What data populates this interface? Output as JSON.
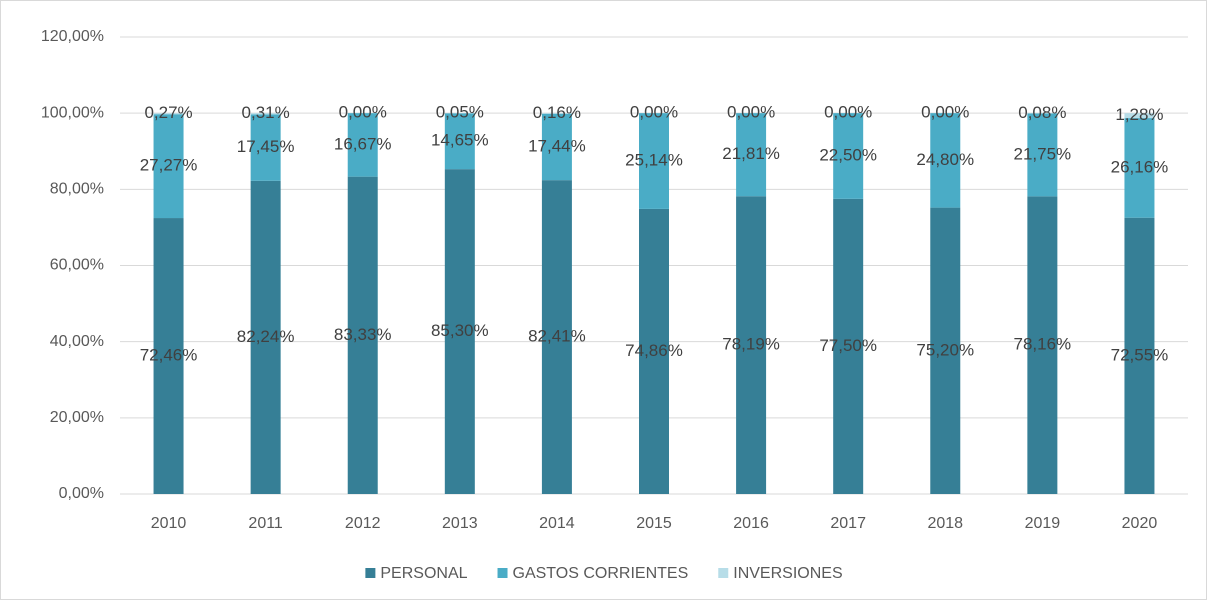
{
  "chart_data": {
    "type": "stacked_bar",
    "categories": [
      "2010",
      "2011",
      "2012",
      "2013",
      "2014",
      "2015",
      "2016",
      "2017",
      "2018",
      "2019",
      "2020"
    ],
    "series": [
      {
        "name": "PERSONAL",
        "color": "#367f96",
        "values": [
          72.46,
          82.24,
          83.33,
          85.3,
          82.41,
          74.86,
          78.19,
          77.5,
          75.2,
          78.16,
          72.55
        ],
        "value_labels": [
          "72,46%",
          "82,24%",
          "83,33%",
          "85,30%",
          "82,41%",
          "74,86%",
          "78,19%",
          "77,50%",
          "75,20%",
          "78,16%",
          "72,55%"
        ]
      },
      {
        "name": "GASTOS CORRIENTES",
        "color": "#4aacc6",
        "values": [
          27.27,
          17.45,
          16.67,
          14.65,
          17.44,
          25.14,
          21.81,
          22.5,
          24.8,
          21.75,
          26.16
        ],
        "value_labels": [
          "27,27%",
          "17,45%",
          "16,67%",
          "14,65%",
          "17,44%",
          "25,14%",
          "21,81%",
          "22,50%",
          "24,80%",
          "21,75%",
          "26,16%"
        ]
      },
      {
        "name": "INVERSIONES",
        "color": "#b7dde8",
        "values": [
          0.27,
          0.31,
          0.0,
          0.05,
          0.16,
          0.0,
          0.0,
          0.0,
          0.0,
          0.08,
          1.28
        ],
        "value_labels": [
          "0,27%",
          "0,31%",
          "0,00%",
          "0,05%",
          "0,16%",
          "0,00%",
          "0,00%",
          "0,00%",
          "0,00%",
          "0,08%",
          "1,28%"
        ]
      }
    ],
    "ylim": [
      0,
      120
    ],
    "yticks": [
      {
        "value": 0,
        "label": "0,00%"
      },
      {
        "value": 20,
        "label": "20,00%"
      },
      {
        "value": 40,
        "label": "40,00%"
      },
      {
        "value": 60,
        "label": "60,00%"
      },
      {
        "value": 80,
        "label": "80,00%"
      },
      {
        "value": 100,
        "label": "100,00%"
      },
      {
        "value": 120,
        "label": "120,00%"
      }
    ],
    "grid": true,
    "legend": "bottom"
  }
}
